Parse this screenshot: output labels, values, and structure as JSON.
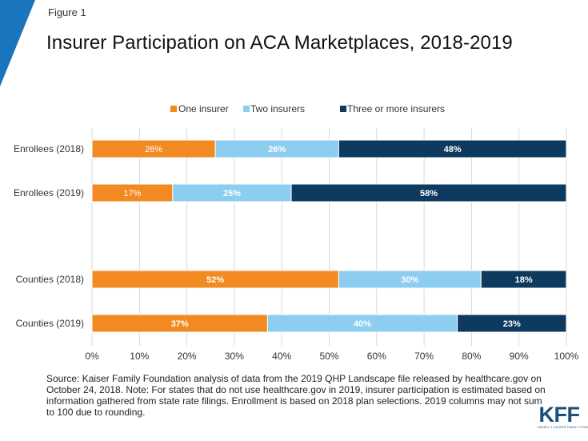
{
  "figure_label": "Figure 1",
  "chart_data": {
    "type": "bar",
    "orientation": "horizontal",
    "stacked": true,
    "title": "Insurer Participation on ACA Marketplaces, 2018-2019",
    "categories": [
      "Enrollees (2018)",
      "Enrollees (2019)",
      "Counties (2018)",
      "Counties (2019)"
    ],
    "series": [
      {
        "name": "One insurer",
        "color": "#f28a22",
        "values": [
          26,
          17,
          52,
          37
        ],
        "labels": [
          "26%",
          "17%",
          "52%",
          "37%"
        ]
      },
      {
        "name": "Two insurers",
        "color": "#8ccdf0",
        "values": [
          26,
          25,
          30,
          40
        ],
        "labels": [
          "26%",
          "25%",
          "30%",
          "40%"
        ]
      },
      {
        "name": "Three or more insurers",
        "color": "#0f3a5f",
        "values": [
          48,
          58,
          18,
          23
        ],
        "labels": [
          "48%",
          "58%",
          "18%",
          "23%"
        ]
      }
    ],
    "xlim": [
      0,
      100
    ],
    "x_ticks": [
      "0%",
      "10%",
      "20%",
      "30%",
      "40%",
      "50%",
      "60%",
      "70%",
      "80%",
      "90%",
      "100%"
    ],
    "gridlines": true,
    "legend_position": "top"
  },
  "source_note": "Source: Kaiser Family Foundation analysis of data from the 2019 QHP Landscape file released by healthcare.gov on October 24, 2018. Note: For states that do not use healthcare.gov in 2019, insurer participation is estimated based on information gathered from state rate filings. Enrollment is based on 2018 plan selections. 2019 columns may not sum to 100 due to rounding.",
  "logo": {
    "name": "KFF",
    "subtitle": "HENRY J KAISER FAMILY FOUNDATION"
  },
  "colors": {
    "accent_triangle": "#1b75bc",
    "gridline": "#d9d9d9",
    "bar_border": "#ffffff"
  }
}
